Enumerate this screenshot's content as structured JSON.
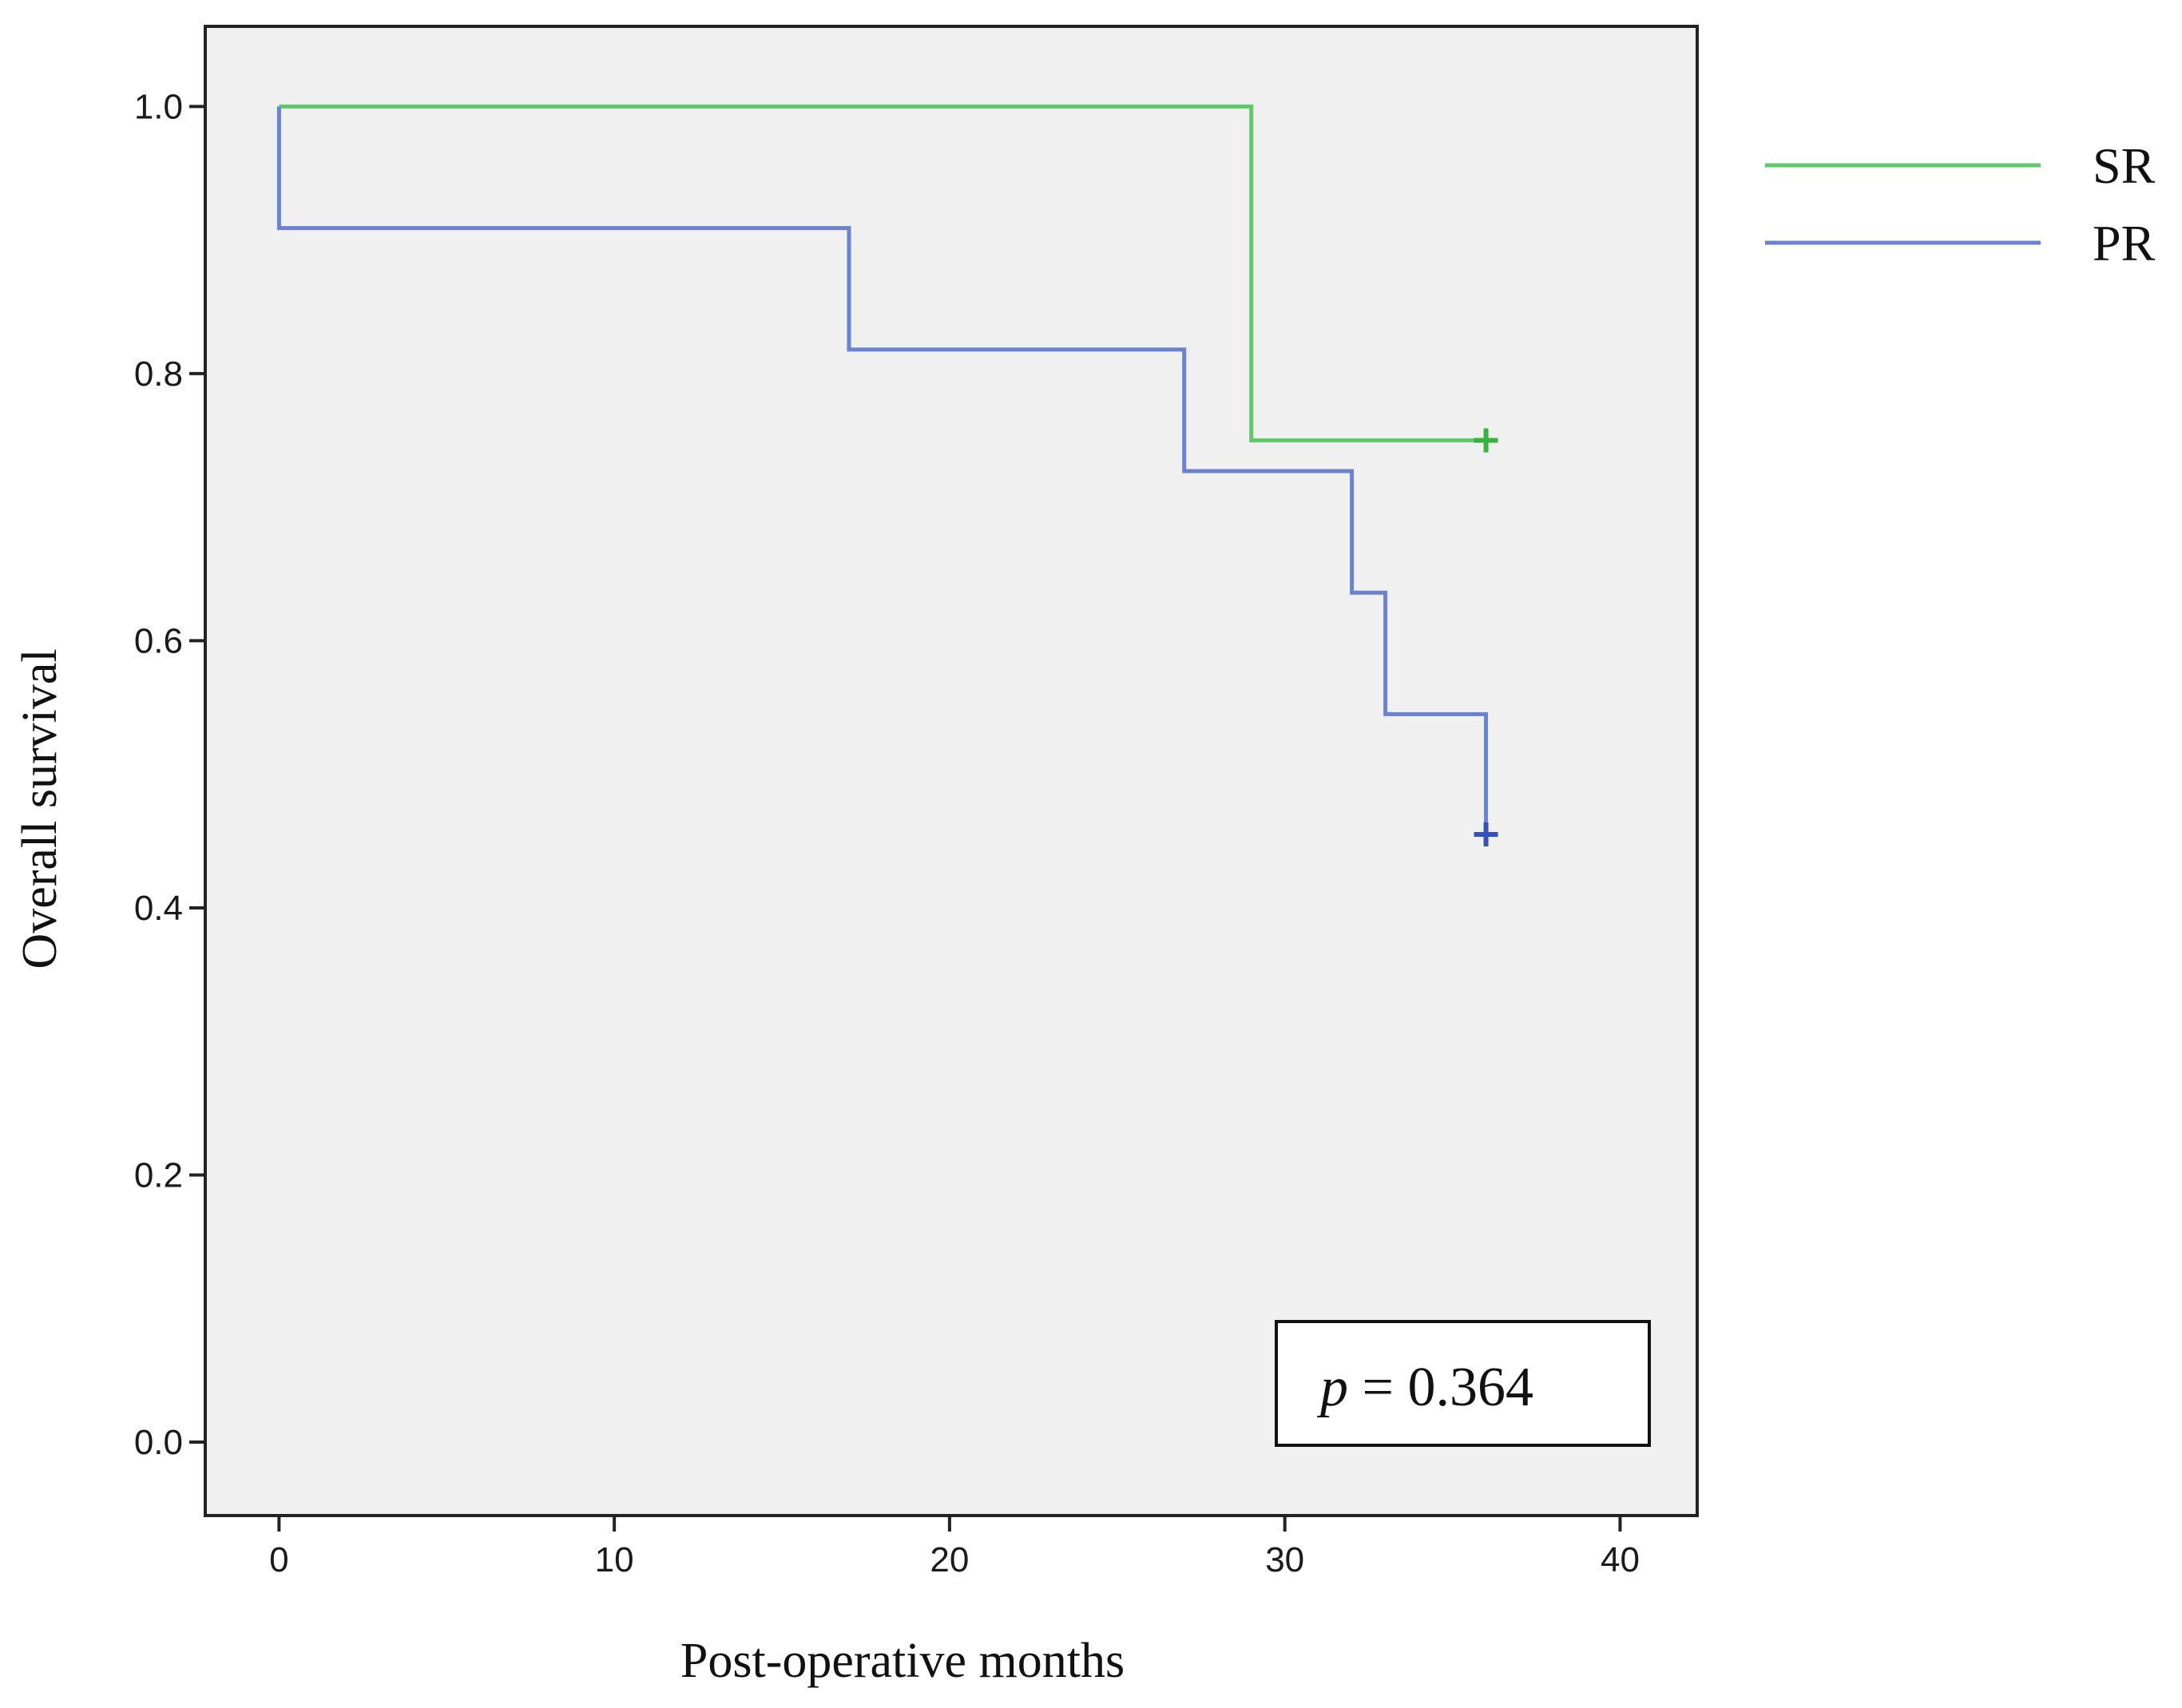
{
  "chart_data": {
    "type": "line",
    "subtype": "kaplan-meier-step",
    "title": "",
    "xlabel": "Post-operative months",
    "ylabel": "Overall survival",
    "xlim": [
      -2.2,
      42.3
    ],
    "ylim": [
      -0.055,
      1.06
    ],
    "xticks": [
      0,
      10,
      20,
      30,
      40
    ],
    "xtick_labels": [
      "0",
      "10",
      "20",
      "30",
      "40"
    ],
    "yticks": [
      0.0,
      0.2,
      0.4,
      0.6,
      0.8,
      1.0
    ],
    "ytick_labels": [
      "0.0",
      "0.2",
      "0.4",
      "0.6",
      "0.8",
      "1.0"
    ],
    "grid": false,
    "legend_position": "outside-right-top",
    "series": [
      {
        "name": "SR",
        "color": "#5ec96a",
        "censor_color": "#36b23f",
        "steps": [
          [
            0,
            1.0
          ],
          [
            29,
            1.0
          ],
          [
            29,
            0.75
          ],
          [
            36,
            0.75
          ]
        ],
        "censored": [
          [
            36,
            0.75
          ]
        ]
      },
      {
        "name": "PR",
        "color": "#6a82cf",
        "censor_color": "#3650b5",
        "steps": [
          [
            0,
            1.0
          ],
          [
            0,
            0.909
          ],
          [
            17,
            0.909
          ],
          [
            17,
            0.818
          ],
          [
            27,
            0.818
          ],
          [
            27,
            0.727
          ],
          [
            32,
            0.727
          ],
          [
            32,
            0.636
          ],
          [
            33,
            0.636
          ],
          [
            33,
            0.545
          ],
          [
            36,
            0.545
          ],
          [
            36,
            0.455
          ]
        ],
        "censored": [
          [
            36,
            0.455
          ]
        ]
      }
    ],
    "annotation": {
      "p_symbol": "p",
      "p_value_text": " = 0.364"
    }
  }
}
